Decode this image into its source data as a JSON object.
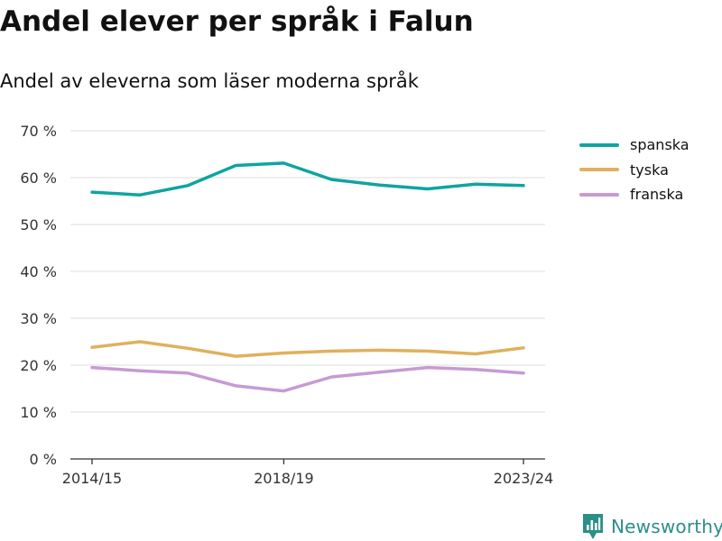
{
  "title": "Andel elever per språk i Falun",
  "subtitle": "Andel av eleverna som läser moderna språk",
  "brand": {
    "name": "Newsworthy",
    "color": "#2b8f87",
    "icon": "newsworthy-chart-icon"
  },
  "chart_data": {
    "type": "line",
    "ylim": [
      0,
      70
    ],
    "yticks": [
      0,
      10,
      20,
      30,
      40,
      50,
      60,
      70
    ],
    "ytick_labels": [
      "0 %",
      "10 %",
      "20 %",
      "30 %",
      "40 %",
      "50 %",
      "60 %",
      "70 %"
    ],
    "x_tick_labels": [
      {
        "index": 0,
        "label": "2014/15"
      },
      {
        "index": 4,
        "label": "2018/19"
      },
      {
        "index": 9,
        "label": "2023/24"
      }
    ],
    "grid": true,
    "legend_position": "top-right",
    "series": [
      {
        "name": "spanska",
        "color": "#0ea5a0",
        "values": [
          56.9,
          56.3,
          58.3,
          62.6,
          63.1,
          59.6,
          58.4,
          57.6,
          58.6,
          58.3
        ]
      },
      {
        "name": "tyska",
        "color": "#e0b05c",
        "values": [
          23.8,
          25.0,
          23.6,
          21.9,
          22.6,
          23.0,
          23.2,
          23.0,
          22.4,
          23.7
        ]
      },
      {
        "name": "franska",
        "color": "#c79ad4",
        "values": [
          19.5,
          18.8,
          18.3,
          15.6,
          14.5,
          17.5,
          18.5,
          19.5,
          19.1,
          18.3
        ]
      }
    ]
  }
}
